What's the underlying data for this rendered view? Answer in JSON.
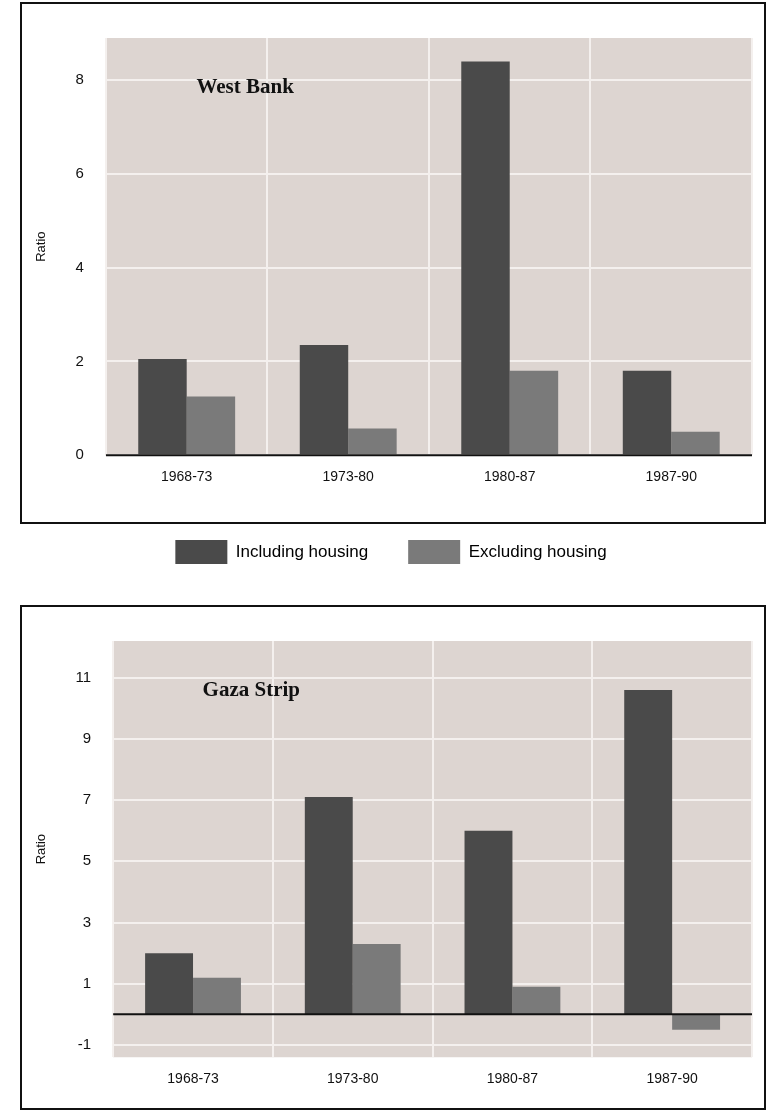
{
  "chart_data": [
    {
      "type": "bar",
      "title": "West Bank",
      "ylabel": "Ratio",
      "categories": [
        "1968-73",
        "1973-80",
        "1980-87",
        "1987-90"
      ],
      "series": [
        {
          "name": "Including housing",
          "color": "#4a4a4a",
          "values": [
            2.05,
            2.35,
            8.4,
            1.8
          ]
        },
        {
          "name": "Excluding housing",
          "color": "#7a7a7a",
          "values": [
            1.25,
            0.57,
            1.8,
            0.5
          ]
        }
      ],
      "ylim": [
        0,
        8.9
      ],
      "yticks": [
        0,
        2,
        4,
        6,
        8
      ],
      "grid": true,
      "legend": "bottom"
    },
    {
      "type": "bar",
      "title": "Gaza Strip",
      "ylabel": "Ratio",
      "categories": [
        "1968-73",
        "1973-80",
        "1980-87",
        "1987-90"
      ],
      "series": [
        {
          "color": "#4a4a4a",
          "values": [
            2.0,
            7.1,
            6.0,
            10.6
          ]
        },
        {
          "color": "#7a7a7a",
          "values": [
            1.2,
            2.3,
            0.9,
            -0.5
          ]
        }
      ],
      "ylim": [
        -1.4,
        12.2
      ],
      "yticks": [
        -1,
        1,
        3,
        5,
        7,
        9,
        11
      ],
      "grid": true,
      "legend": false
    }
  ]
}
